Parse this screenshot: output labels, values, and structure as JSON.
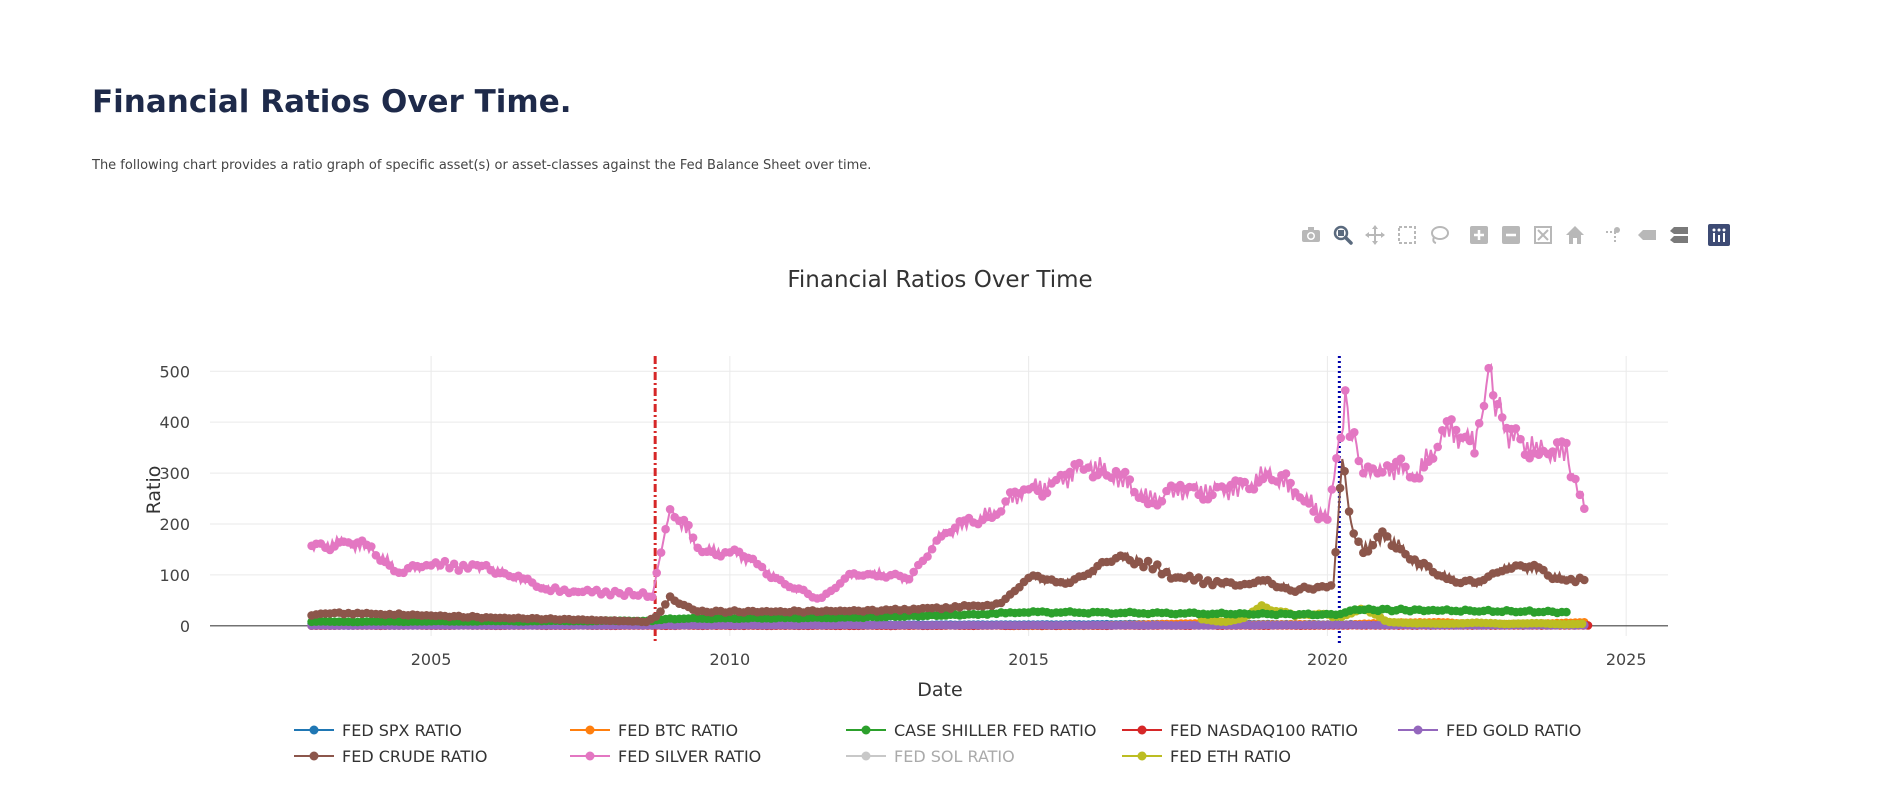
{
  "page": {
    "heading": "Financial Ratios Over Time.",
    "description": "The following chart provides a ratio graph of specific asset(s) or asset-classes against the Fed Balance Sheet over time."
  },
  "toolbar": {
    "buttons": [
      "camera-icon",
      "zoom-icon",
      "pan-icon",
      "box-select-icon",
      "lasso-select-icon",
      "zoom-in-icon",
      "zoom-out-icon",
      "autoscale-icon",
      "reset-axes-icon",
      "spike-lines-icon",
      "hover-closest-icon",
      "hover-compare-icon",
      "plotly-logo-icon"
    ]
  },
  "chart_data": {
    "type": "scatter",
    "mode": "lines+markers",
    "title": "Financial Ratios Over Time",
    "xlabel": "Date",
    "ylabel": "Ratio",
    "xlim": [
      2001.3,
      2025.7
    ],
    "ylim": [
      -20,
      530
    ],
    "xticks": [
      2005,
      2010,
      2015,
      2020,
      2025
    ],
    "yticks": [
      0,
      100,
      200,
      300,
      400,
      500
    ],
    "grid": true,
    "legend_position": "bottom",
    "vlines": [
      {
        "x": 2008.75,
        "color": "#d62728",
        "style": "dashdot"
      },
      {
        "x": 2020.2,
        "color": "#0000aa",
        "style": "dotted"
      }
    ],
    "series": [
      {
        "name": "FED SPX RATIO",
        "color": "#1f77b4",
        "x": [
          2003.0,
          2005.0,
          2008.0,
          2009.2,
          2012.0,
          2015.0,
          2018.0,
          2020.2,
          2022.0,
          2024.3
        ],
        "y": [
          4.0,
          3.8,
          3.2,
          1.5,
          2.0,
          2.5,
          3.5,
          2.8,
          3.5,
          3.0
        ]
      },
      {
        "name": "FED BTC RATIO",
        "color": "#ff7f0e",
        "x": [
          2014.6,
          2016.0,
          2017.9,
          2018.5,
          2019.5,
          2020.2,
          2021.0,
          2021.9,
          2022.5,
          2023.5,
          2024.3
        ],
        "y": [
          0.1,
          0.2,
          5.0,
          2.0,
          3.0,
          1.5,
          6.0,
          7.0,
          3.0,
          4.0,
          7.0
        ]
      },
      {
        "name": "CASE SHILLER FED RATIO",
        "color": "#2ca02c",
        "x": [
          2003.0,
          2008.7,
          2009.0,
          2012.0,
          2014.0,
          2015.0,
          2018.0,
          2020.1,
          2020.5,
          2022.0,
          2024.0
        ],
        "y": [
          8.0,
          10.0,
          14.0,
          16.0,
          22.0,
          27.0,
          24.0,
          22.0,
          32.0,
          30.0,
          27.0
        ]
      },
      {
        "name": "FED NASDAQ100 RATIO",
        "color": "#d62728",
        "x": [
          2003.0,
          2008.7,
          2012.0,
          2016.0,
          2019.9,
          2020.3,
          2022.0,
          2024.4
        ],
        "y": [
          0.4,
          0.3,
          0.2,
          0.4,
          0.5,
          0.9,
          0.6,
          0.8
        ]
      },
      {
        "name": "FED GOLD RATIO",
        "color": "#9467bd",
        "x": [
          2003.0,
          2008.0,
          2009.0,
          2012.0,
          2015.0,
          2018.0,
          2020.2,
          2022.0,
          2024.3
        ],
        "y": [
          0.5,
          1.0,
          1.2,
          1.5,
          1.2,
          1.1,
          1.8,
          1.0,
          1.2
        ]
      },
      {
        "name": "FED CRUDE RATIO",
        "color": "#8c564b",
        "x": [
          2003.0,
          2003.5,
          2004.5,
          2006.0,
          2007.5,
          2008.6,
          2008.8,
          2009.0,
          2009.5,
          2011.0,
          2012.5,
          2013.5,
          2014.5,
          2015.0,
          2015.5,
          2016.0,
          2016.5,
          2017.5,
          2018.5,
          2019.0,
          2019.5,
          2020.1,
          2020.25,
          2020.4,
          2020.6,
          2021.0,
          2021.5,
          2022.0,
          2022.5,
          2023.0,
          2023.5,
          2024.0,
          2024.3
        ],
        "y": [
          22,
          25,
          22,
          16,
          12,
          8,
          20,
          55,
          28,
          28,
          30,
          35,
          42,
          95,
          85,
          100,
          140,
          95,
          80,
          85,
          70,
          80,
          330,
          200,
          150,
          180,
          120,
          95,
          80,
          120,
          110,
          90,
          90
        ]
      },
      {
        "name": "FED SILVER RATIO",
        "color": "#e377c2",
        "x": [
          2003.0,
          2003.5,
          2004.0,
          2004.5,
          2005.0,
          2006.0,
          2006.5,
          2007.0,
          2008.0,
          2008.7,
          2009.0,
          2009.5,
          2010.0,
          2010.5,
          2011.0,
          2011.5,
          2012.0,
          2012.5,
          2013.0,
          2013.5,
          2014.0,
          2014.5,
          2015.0,
          2015.5,
          2016.0,
          2016.5,
          2017.0,
          2017.5,
          2018.0,
          2018.5,
          2019.0,
          2019.5,
          2020.0,
          2020.3,
          2020.6,
          2021.0,
          2021.5,
          2022.0,
          2022.5,
          2022.7,
          2023.0,
          2023.5,
          2024.0,
          2024.3
        ],
        "y": [
          155,
          165,
          150,
          105,
          120,
          115,
          90,
          70,
          65,
          60,
          230,
          150,
          145,
          120,
          75,
          55,
          95,
          105,
          90,
          175,
          200,
          230,
          270,
          280,
          320,
          290,
          245,
          265,
          270,
          265,
          300,
          260,
          215,
          430,
          300,
          310,
          300,
          380,
          360,
          490,
          380,
          345,
          335,
          230
        ]
      },
      {
        "name": "FED SOL RATIO",
        "color": "#7f7f7f",
        "legend_muted": true,
        "x": [],
        "y": []
      },
      {
        "name": "FED ETH RATIO",
        "color": "#bcbd22",
        "x": [
          2017.9,
          2018.3,
          2018.6,
          2018.9,
          2019.1,
          2019.5,
          2019.9,
          2020.2,
          2020.6,
          2021.0,
          2021.5,
          2022.0,
          2022.5,
          2023.0,
          2023.5,
          2024.0,
          2024.3
        ],
        "y": [
          12,
          8,
          15,
          40,
          30,
          20,
          25,
          15,
          35,
          8,
          5,
          4,
          6,
          4,
          5,
          3,
          4
        ]
      }
    ]
  }
}
